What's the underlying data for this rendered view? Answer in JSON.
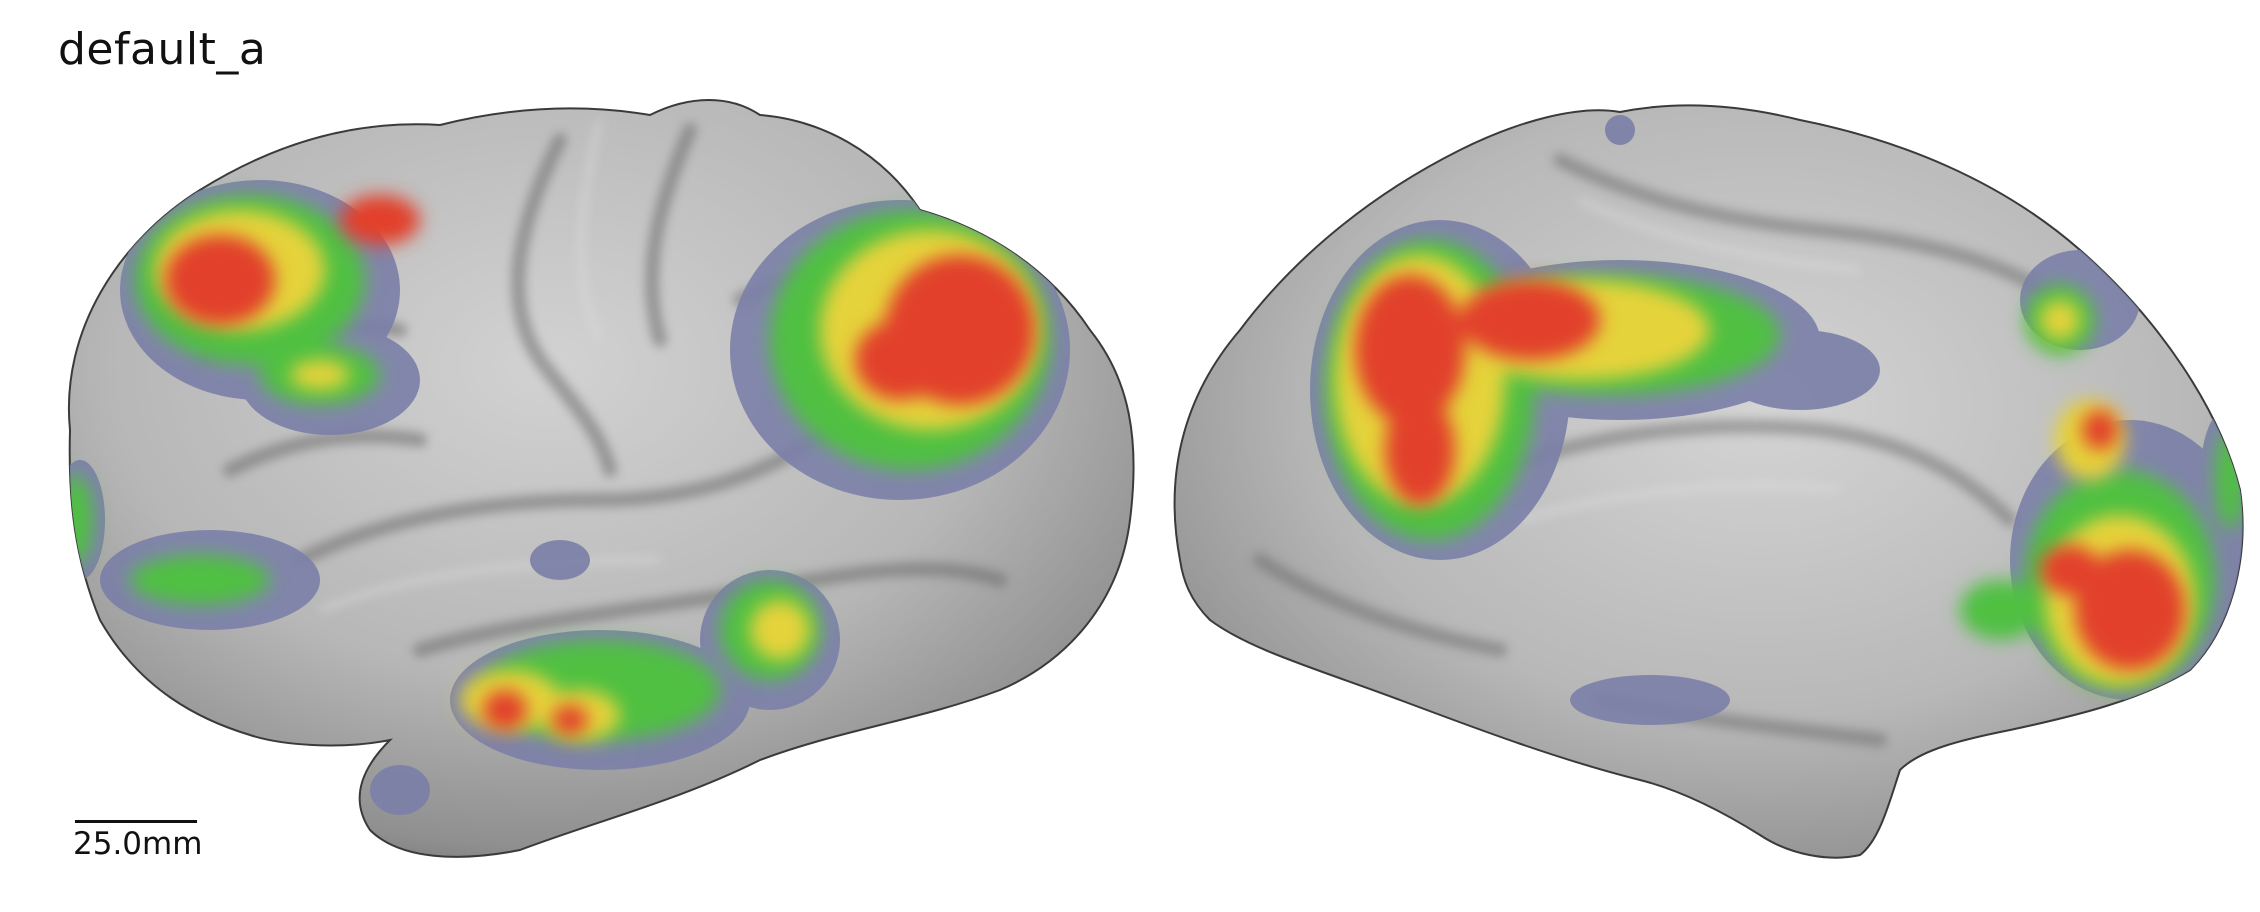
{
  "figure": {
    "title": "default_a"
  },
  "scale_bar": {
    "label": "25.0mm"
  },
  "views": [
    {
      "name": "lateral"
    },
    {
      "name": "medial"
    }
  ],
  "colors": {
    "surface": "#b4b4b4",
    "surface_dark": "#6e6e6e",
    "activation_low": "#7b7fa8",
    "activation_mid": "#4fc043",
    "activation_high_yellow": "#e5d33a",
    "activation_peak": "#e2402a"
  }
}
